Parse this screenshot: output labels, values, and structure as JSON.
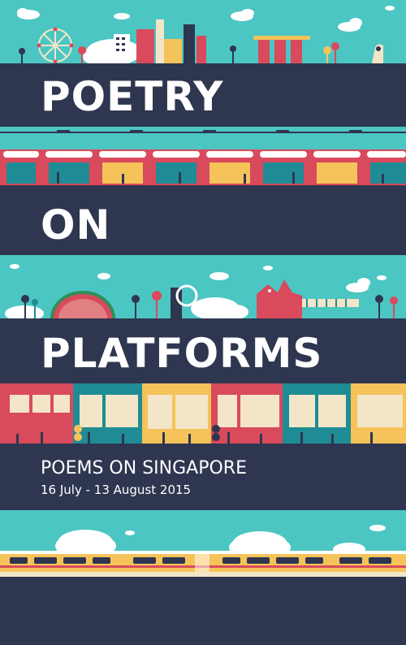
{
  "title": {
    "line1": "POETRY",
    "line2": "ON",
    "line3": "PLATFORMS"
  },
  "subtitle": "POEMS ON SINGAPORE",
  "dates": "16 July - 13 August 2015",
  "colors": {
    "navy": "#2f3650",
    "teal": "#4cc6c2",
    "red": "#d94a5c",
    "yellow": "#f5c35a",
    "dark_teal": "#1f8c95",
    "cream": "#f2e5c8"
  }
}
